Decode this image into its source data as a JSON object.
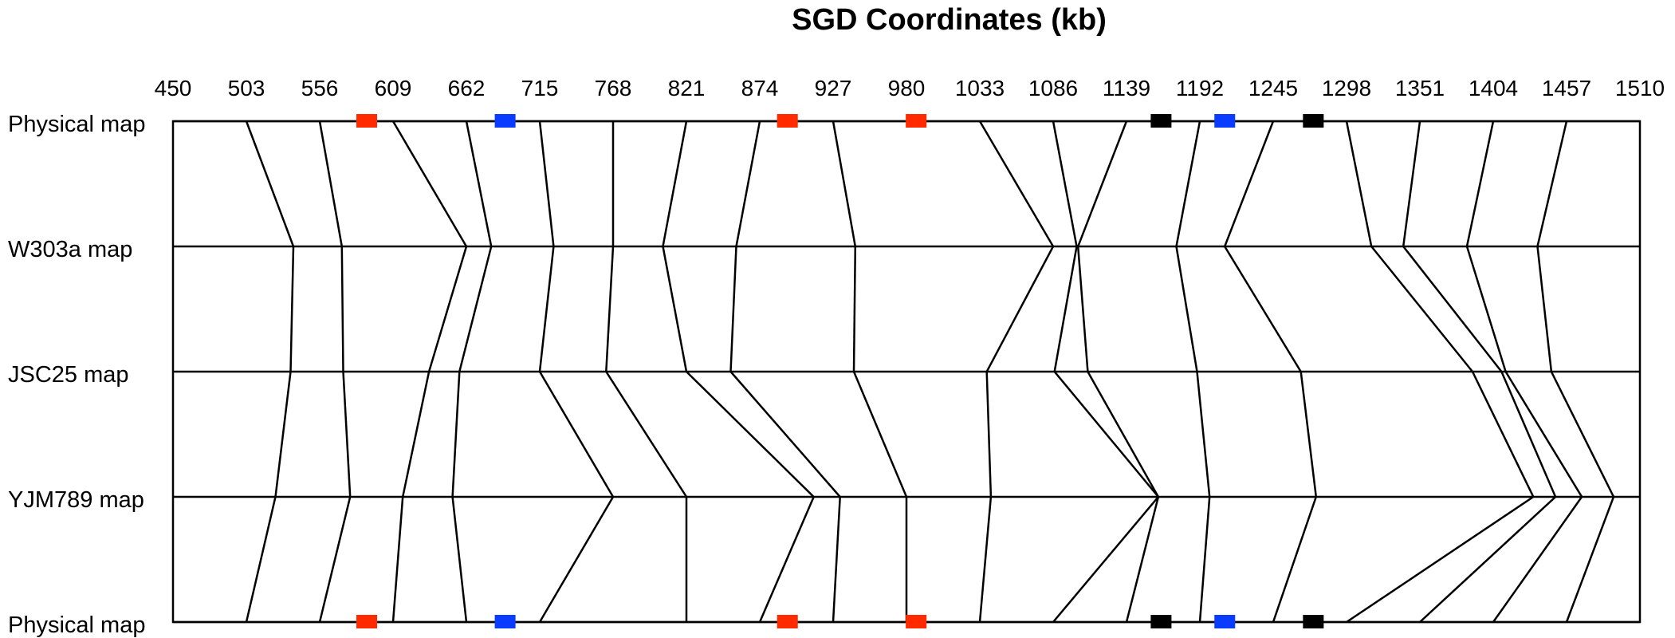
{
  "chart_data": {
    "type": "comparative-map",
    "title": "SGD Coordinates (kb)",
    "x_ticks": [
      "450",
      "503",
      "556",
      "609",
      "662",
      "715",
      "768",
      "821",
      "874",
      "927",
      "980",
      "1033",
      "1086",
      "1139",
      "1192",
      "1245",
      "1298",
      "1351",
      "1404",
      "1457",
      "1510"
    ],
    "xlim": [
      450,
      1510
    ],
    "rows": [
      {
        "label": "Physical map"
      },
      {
        "label": "W303a map"
      },
      {
        "label": "JSC25 map"
      },
      {
        "label": "YJM789 map"
      },
      {
        "label": "Physical map"
      }
    ],
    "markers": [
      {
        "pos": 590,
        "color": "#ff2a00"
      },
      {
        "pos": 690,
        "color": "#0a3cff"
      },
      {
        "pos": 894,
        "color": "#ff2a00"
      },
      {
        "pos": 987,
        "color": "#ff2a00"
      },
      {
        "pos": 1164,
        "color": "#000000"
      },
      {
        "pos": 1210,
        "color": "#0a3cff"
      },
      {
        "pos": 1274,
        "color": "#000000"
      }
    ],
    "connections": [
      {
        "physical": 503,
        "w303a": 537,
        "jsc25": 535,
        "yjm789": 524,
        "physical2": 503
      },
      {
        "physical": 556,
        "w303a": 572,
        "jsc25": 573,
        "yjm789": 578,
        "physical2": 556
      },
      {
        "physical": 609,
        "w303a": 662,
        "jsc25": 635,
        "yjm789": 616,
        "physical2": 609
      },
      {
        "physical": 662,
        "w303a": 680,
        "jsc25": 657,
        "yjm789": 652,
        "physical2": 662
      },
      {
        "physical": 715,
        "w303a": 725,
        "jsc25": 715,
        "yjm789": 768,
        "physical2": 715
      },
      {
        "physical": 768,
        "w303a": 768,
        "jsc25": 763,
        "yjm789": 821,
        "physical2": 821
      },
      {
        "physical": 821,
        "w303a": 804,
        "jsc25": 821,
        "yjm789": 913,
        "physical2": 874
      },
      {
        "physical": 874,
        "w303a": 857,
        "jsc25": 853,
        "yjm789": 932,
        "physical2": 927
      },
      {
        "physical": 927,
        "w303a": 943,
        "jsc25": 942,
        "yjm789": 980,
        "physical2": 980
      },
      {
        "physical": 1033,
        "w303a": 1086,
        "jsc25": 1038,
        "yjm789": 1041,
        "physical2": 1033
      },
      {
        "physical": 1086,
        "w303a": 1103,
        "jsc25": 1087,
        "yjm789": 1162,
        "physical2": 1086
      },
      {
        "physical": 1139,
        "w303a": 1104,
        "jsc25": 1111,
        "yjm789": 1162,
        "physical2": 1139
      },
      {
        "physical": 1192,
        "w303a": 1175,
        "jsc25": 1190,
        "yjm789": 1199,
        "physical2": 1192
      },
      {
        "physical": 1245,
        "w303a": 1210,
        "jsc25": 1265,
        "yjm789": 1276,
        "physical2": 1245
      },
      {
        "physical": 1298,
        "w303a": 1316,
        "jsc25": 1389,
        "yjm789": 1433,
        "physical2": 1298
      },
      {
        "physical": 1351,
        "w303a": 1339,
        "jsc25": 1410,
        "yjm789": 1449,
        "physical2": 1351
      },
      {
        "physical": 1404,
        "w303a": 1385,
        "jsc25": 1413,
        "yjm789": 1468,
        "physical2": 1404
      },
      {
        "physical": 1457,
        "w303a": 1436,
        "jsc25": 1446,
        "yjm789": 1491,
        "physical2": 1457
      }
    ]
  }
}
